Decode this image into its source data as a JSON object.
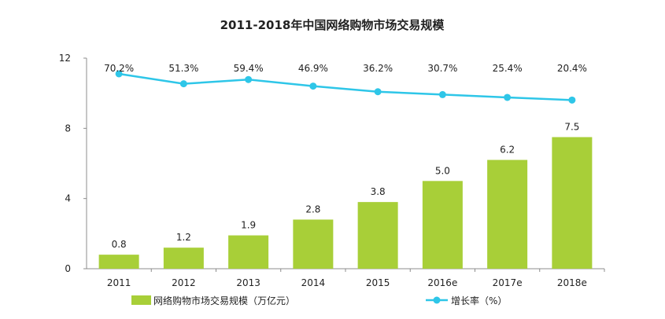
{
  "chart_data": {
    "type": "bar",
    "title": "2011-2018年中国网络购物市场交易规模",
    "categories": [
      "2011",
      "2012",
      "2013",
      "2014",
      "2015",
      "2016e",
      "2017e",
      "2018e"
    ],
    "series": [
      {
        "name": "网络购物市场交易规模（万亿元）",
        "type": "bar",
        "axis": "left",
        "values": [
          0.8,
          1.2,
          1.9,
          2.8,
          3.8,
          5.0,
          6.2,
          7.5
        ],
        "labels": [
          "0.8",
          "1.2",
          "1.9",
          "2.8",
          "3.8",
          "5.0",
          "6.2",
          "7.5"
        ],
        "color": "#a8cf38"
      },
      {
        "name": "增长率（%）",
        "type": "line",
        "axis": "right",
        "values": [
          70.2,
          51.3,
          59.4,
          46.9,
          36.2,
          30.7,
          25.4,
          20.4
        ],
        "labels": [
          "70.2%",
          "51.3%",
          "59.4%",
          "46.9%",
          "36.2%",
          "30.7%",
          "25.4%",
          "20.4%"
        ],
        "color": "#2ec6e8"
      }
    ],
    "yticks": [
      "0",
      "4",
      "8",
      "12"
    ],
    "ylim": [
      0,
      12
    ],
    "y2lim": [
      -300,
      100
    ],
    "grid": false,
    "legend_position": "bottom"
  }
}
